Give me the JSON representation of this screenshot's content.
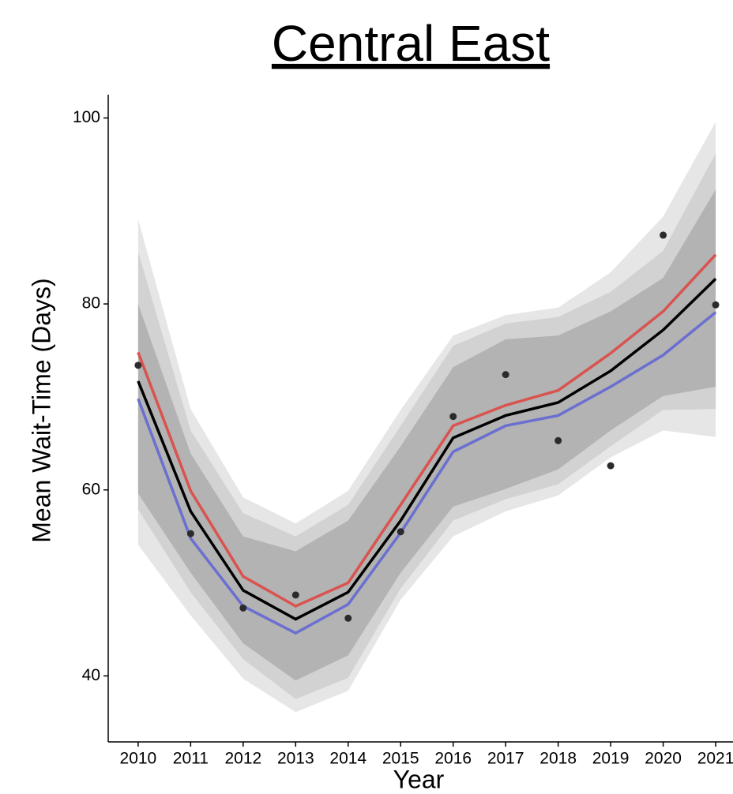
{
  "chart_data": {
    "type": "line",
    "title": "Central East",
    "x_label": "Year",
    "y_label": "Mean Wait-Time (Days)",
    "x": [
      2010,
      2011,
      2012,
      2013,
      2014,
      2015,
      2016,
      2017,
      2018,
      2019,
      2020,
      2021
    ],
    "xlim": [
      2009.43,
      2021.33
    ],
    "xticks": [
      2010,
      2011,
      2012,
      2013,
      2014,
      2015,
      2016,
      2017,
      2018,
      2019,
      2020,
      2021
    ],
    "ylim": [
      32.9,
      102.5
    ],
    "yticks": [
      40,
      60,
      80,
      100
    ],
    "bands": [
      {
        "color": "#e6e6e6",
        "upper": [
          89.1,
          68.7,
          59.2,
          56.4,
          59.9,
          68.6,
          76.6,
          78.8,
          79.6,
          83.4,
          89.4,
          99.6
        ],
        "lower": [
          54.1,
          46.5,
          39.7,
          36.1,
          38.4,
          48.2,
          55.0,
          57.7,
          59.4,
          63.5,
          66.4,
          65.7
        ]
      },
      {
        "color": "#d2d2d2",
        "upper": [
          85.6,
          66.4,
          57.5,
          55.0,
          58.4,
          66.9,
          75.5,
          77.9,
          78.6,
          81.3,
          85.7,
          96.2
        ],
        "lower": [
          57.9,
          49.0,
          41.8,
          37.5,
          39.8,
          49.4,
          56.7,
          59.0,
          60.6,
          64.7,
          68.6,
          68.7
        ]
      },
      {
        "color": "#b3b3b3",
        "upper": [
          80.0,
          63.9,
          55.0,
          53.4,
          56.7,
          64.7,
          73.2,
          76.2,
          76.6,
          79.2,
          82.8,
          92.3
        ],
        "lower": [
          59.6,
          51.1,
          43.5,
          39.5,
          42.2,
          51.1,
          58.2,
          60.1,
          62.2,
          66.4,
          70.1,
          71.1
        ]
      }
    ],
    "series": [
      {
        "color": "#d9534f",
        "values": [
          74.8,
          59.9,
          50.7,
          47.5,
          50.0,
          58.4,
          66.9,
          69.1,
          70.7,
          74.7,
          79.2,
          85.3
        ]
      },
      {
        "color": "#6a6fd0",
        "values": [
          69.8,
          54.8,
          47.5,
          44.6,
          47.7,
          55.4,
          64.1,
          66.9,
          68.0,
          71.1,
          74.5,
          79.1
        ]
      },
      {
        "color": "#000000",
        "values": [
          71.7,
          57.7,
          49.2,
          46.1,
          49.0,
          56.7,
          65.6,
          68.0,
          69.4,
          72.8,
          77.2,
          82.7
        ]
      }
    ],
    "points": {
      "color": "#2b2b2b",
      "values": [
        73.4,
        55.3,
        47.3,
        48.7,
        46.2,
        55.5,
        67.9,
        72.4,
        65.3,
        62.6,
        87.4,
        79.9
      ]
    }
  }
}
